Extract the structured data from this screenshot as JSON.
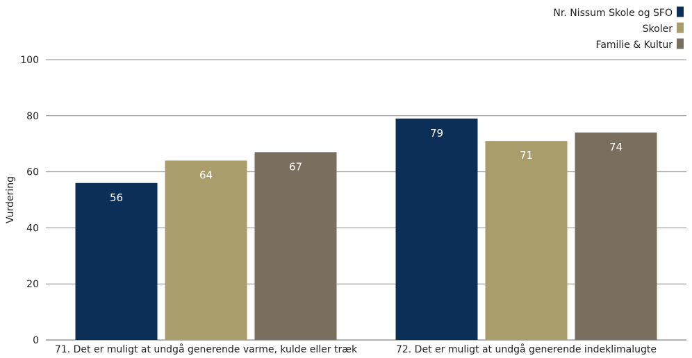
{
  "chart_data": {
    "type": "bar",
    "title": "",
    "xlabel": "",
    "ylabel": "Vurdering",
    "ylim": [
      0,
      100
    ],
    "yticks": [
      0,
      20,
      40,
      60,
      80,
      100
    ],
    "grid": true,
    "legend_position": "top-right",
    "categories": [
      "71. Det er muligt at undgå generende varme, kulde eller træk",
      "72. Det er muligt at undgå generende indeklimalugte"
    ],
    "series": [
      {
        "name": "Nr. Nissum Skole og SFO",
        "color": "#0b2f57",
        "values": [
          56,
          79
        ]
      },
      {
        "name": "Skoler",
        "color": "#a89d6b",
        "values": [
          64,
          71
        ]
      },
      {
        "name": "Familie & Kultur",
        "color": "#7a6e5e",
        "values": [
          67,
          74
        ]
      }
    ]
  }
}
